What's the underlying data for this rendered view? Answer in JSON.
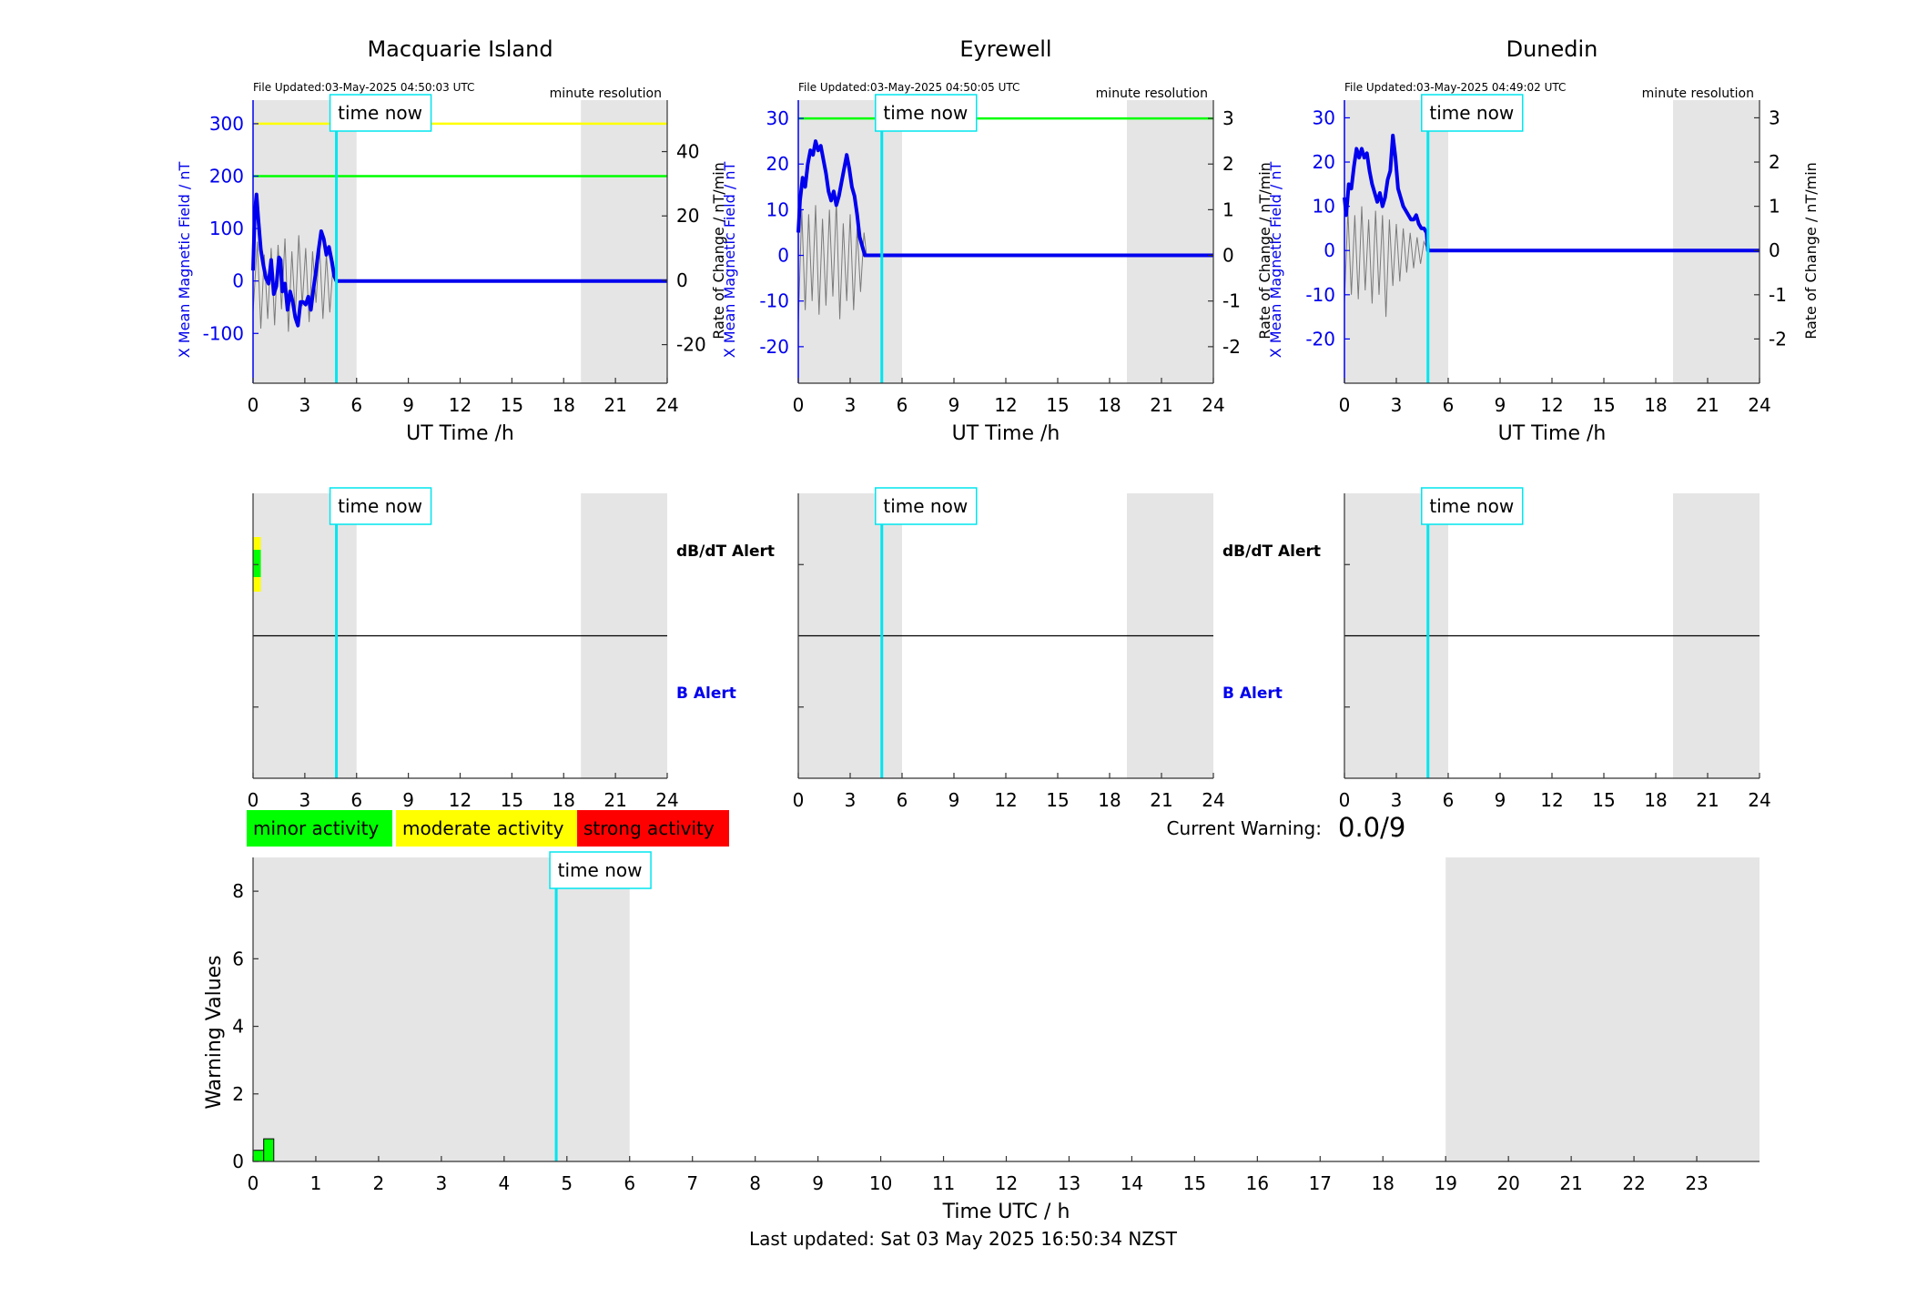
{
  "stations": [
    {
      "title": "Macquarie Island",
      "file_updated": "File Updated:03-May-2025 04:50:03 UTC",
      "resolution": "minute resolution",
      "time_now_label": "time now",
      "now_hour": 4.83,
      "shade_ranges": [
        [
          0,
          6
        ],
        [
          19,
          24
        ]
      ],
      "left_yticks": [
        -100,
        0,
        100,
        200,
        300
      ],
      "left_ylim": [
        -195,
        345
      ],
      "left_ylabel": "X Mean Magnetic Field / nT",
      "right_yticks": [
        -20,
        0,
        20,
        40
      ],
      "right_ylim": [
        -32,
        56
      ],
      "right_ylabel": "Rate of Change / nT/min",
      "alert_lines": [
        {
          "value": 300,
          "color": "#ffff00"
        },
        {
          "value": 200,
          "color": "#00ff00"
        }
      ],
      "field_series": [
        [
          0,
          20
        ],
        [
          0.1,
          130
        ],
        [
          0.2,
          165
        ],
        [
          0.3,
          120
        ],
        [
          0.45,
          60
        ],
        [
          0.6,
          30
        ],
        [
          0.75,
          5
        ],
        [
          0.9,
          -5
        ],
        [
          1.05,
          40
        ],
        [
          1.2,
          -25
        ],
        [
          1.35,
          -10
        ],
        [
          1.5,
          45
        ],
        [
          1.6,
          40
        ],
        [
          1.7,
          -20
        ],
        [
          1.85,
          -5
        ],
        [
          2.0,
          -55
        ],
        [
          2.15,
          -20
        ],
        [
          2.3,
          -40
        ],
        [
          2.45,
          -70
        ],
        [
          2.6,
          -85
        ],
        [
          2.75,
          -40
        ],
        [
          2.9,
          -40
        ],
        [
          3.05,
          -45
        ],
        [
          3.2,
          -30
        ],
        [
          3.35,
          -55
        ],
        [
          3.5,
          -15
        ],
        [
          3.65,
          20
        ],
        [
          3.8,
          60
        ],
        [
          3.95,
          95
        ],
        [
          4.1,
          80
        ],
        [
          4.25,
          50
        ],
        [
          4.4,
          65
        ],
        [
          4.55,
          40
        ],
        [
          4.7,
          10
        ],
        [
          4.83,
          0
        ],
        [
          24,
          0
        ]
      ],
      "roc_series": [
        [
          0,
          -10
        ],
        [
          0.25,
          12
        ],
        [
          0.45,
          -15
        ],
        [
          0.65,
          8
        ],
        [
          0.85,
          -12
        ],
        [
          1.05,
          10
        ],
        [
          1.25,
          -14
        ],
        [
          1.45,
          11
        ],
        [
          1.65,
          -9
        ],
        [
          1.85,
          13
        ],
        [
          2.05,
          -16
        ],
        [
          2.25,
          9
        ],
        [
          2.45,
          -11
        ],
        [
          2.65,
          14
        ],
        [
          2.85,
          -8
        ],
        [
          3.05,
          10
        ],
        [
          3.25,
          -13
        ],
        [
          3.45,
          9
        ],
        [
          3.65,
          -7
        ],
        [
          3.85,
          11
        ],
        [
          4.05,
          -12
        ],
        [
          4.25,
          8
        ],
        [
          4.45,
          -10
        ],
        [
          4.65,
          6
        ],
        [
          4.83,
          0
        ]
      ],
      "alert_panel": {
        "dbdt_label": "dB/dT Alert",
        "b_label": "B Alert",
        "dbdt_blocks": [
          {
            "start": 0,
            "end": 0.45,
            "color": "#00ff00",
            "edge": "#ffff00"
          }
        ]
      }
    },
    {
      "title": "Eyrewell",
      "file_updated": "File Updated:03-May-2025 04:50:05 UTC",
      "resolution": "minute resolution",
      "time_now_label": "time now",
      "now_hour": 4.83,
      "shade_ranges": [
        [
          0,
          6
        ],
        [
          19,
          24
        ]
      ],
      "left_yticks": [
        -20,
        -10,
        0,
        10,
        20,
        30
      ],
      "left_ylim": [
        -28,
        34
      ],
      "left_ylabel": "X Mean Magnetic Field / nT",
      "right_yticks": [
        -2,
        -1,
        0,
        1,
        2,
        3
      ],
      "right_ylim": [
        -2.8,
        3.4
      ],
      "right_ylabel": "Rate of Change / nT/min",
      "alert_lines": [
        {
          "value": 30,
          "color": "#00ff00"
        }
      ],
      "field_series": [
        [
          0,
          5
        ],
        [
          0.1,
          12
        ],
        [
          0.25,
          17
        ],
        [
          0.4,
          15
        ],
        [
          0.55,
          20
        ],
        [
          0.7,
          23
        ],
        [
          0.85,
          22
        ],
        [
          1.0,
          25
        ],
        [
          1.15,
          23
        ],
        [
          1.3,
          24
        ],
        [
          1.45,
          21
        ],
        [
          1.6,
          18
        ],
        [
          1.75,
          14
        ],
        [
          1.9,
          12
        ],
        [
          2.05,
          14
        ],
        [
          2.2,
          11
        ],
        [
          2.35,
          13
        ],
        [
          2.5,
          16
        ],
        [
          2.65,
          19
        ],
        [
          2.8,
          22
        ],
        [
          2.95,
          19
        ],
        [
          3.1,
          15
        ],
        [
          3.25,
          13
        ],
        [
          3.4,
          9
        ],
        [
          3.55,
          4
        ],
        [
          3.7,
          2
        ],
        [
          3.85,
          0
        ],
        [
          3.95,
          0
        ],
        [
          24,
          0
        ]
      ],
      "roc_series": [
        [
          0,
          -1.5
        ],
        [
          0.2,
          1.0
        ],
        [
          0.4,
          -1.2
        ],
        [
          0.6,
          0.9
        ],
        [
          0.8,
          -1.0
        ],
        [
          1.0,
          1.1
        ],
        [
          1.2,
          -1.3
        ],
        [
          1.4,
          0.8
        ],
        [
          1.6,
          -1.1
        ],
        [
          1.8,
          1.0
        ],
        [
          2.0,
          -0.9
        ],
        [
          2.2,
          1.2
        ],
        [
          2.4,
          -1.4
        ],
        [
          2.6,
          0.7
        ],
        [
          2.8,
          -1.0
        ],
        [
          3.0,
          0.9
        ],
        [
          3.2,
          -1.2
        ],
        [
          3.4,
          0.6
        ],
        [
          3.6,
          -0.8
        ],
        [
          3.8,
          0.5
        ],
        [
          3.95,
          0
        ]
      ],
      "alert_panel": {
        "dbdt_label": "dB/dT Alert",
        "b_label": "B Alert",
        "dbdt_blocks": []
      }
    },
    {
      "title": "Dunedin",
      "file_updated": "File Updated:03-May-2025 04:49:02 UTC",
      "resolution": "minute resolution",
      "time_now_label": "time now",
      "now_hour": 4.83,
      "shade_ranges": [
        [
          0,
          6
        ],
        [
          19,
          24
        ]
      ],
      "left_yticks": [
        -20,
        -10,
        0,
        10,
        20,
        30
      ],
      "left_ylim": [
        -30,
        34
      ],
      "left_ylabel": "X Mean Magnetic Field / nT",
      "right_yticks": [
        -2,
        -1,
        0,
        1,
        2,
        3
      ],
      "right_ylim": [
        -3.0,
        3.4
      ],
      "right_ylabel": "Rate of Change / nT/min",
      "alert_lines": [],
      "field_series": [
        [
          0,
          12
        ],
        [
          0.1,
          8
        ],
        [
          0.25,
          15
        ],
        [
          0.4,
          14
        ],
        [
          0.55,
          19
        ],
        [
          0.7,
          23
        ],
        [
          0.85,
          21
        ],
        [
          1.0,
          23
        ],
        [
          1.15,
          21
        ],
        [
          1.3,
          22
        ],
        [
          1.45,
          18
        ],
        [
          1.6,
          15
        ],
        [
          1.75,
          13
        ],
        [
          1.9,
          11
        ],
        [
          2.05,
          13
        ],
        [
          2.2,
          10
        ],
        [
          2.35,
          12
        ],
        [
          2.5,
          16
        ],
        [
          2.65,
          18
        ],
        [
          2.8,
          26
        ],
        [
          2.95,
          21
        ],
        [
          3.1,
          14
        ],
        [
          3.25,
          12
        ],
        [
          3.4,
          10
        ],
        [
          3.55,
          9
        ],
        [
          3.7,
          8
        ],
        [
          3.85,
          7
        ],
        [
          4.0,
          7
        ],
        [
          4.15,
          8
        ],
        [
          4.3,
          6
        ],
        [
          4.45,
          5
        ],
        [
          4.6,
          5
        ],
        [
          4.75,
          4
        ],
        [
          4.83,
          0
        ],
        [
          24,
          0
        ]
      ],
      "roc_series": [
        [
          0,
          -1.2
        ],
        [
          0.2,
          0.9
        ],
        [
          0.4,
          -1.0
        ],
        [
          0.6,
          0.8
        ],
        [
          0.8,
          -1.1
        ],
        [
          1.0,
          1.0
        ],
        [
          1.2,
          -0.9
        ],
        [
          1.4,
          0.7
        ],
        [
          1.6,
          -1.2
        ],
        [
          1.8,
          0.9
        ],
        [
          2.0,
          -1.0
        ],
        [
          2.2,
          0.8
        ],
        [
          2.4,
          -1.5
        ],
        [
          2.6,
          0.7
        ],
        [
          2.8,
          -0.8
        ],
        [
          3.0,
          0.6
        ],
        [
          3.2,
          -0.7
        ],
        [
          3.4,
          0.5
        ],
        [
          3.6,
          -0.5
        ],
        [
          3.8,
          0.4
        ],
        [
          4.0,
          -0.4
        ],
        [
          4.2,
          0.3
        ],
        [
          4.4,
          -0.3
        ],
        [
          4.6,
          0.2
        ],
        [
          4.83,
          0
        ]
      ],
      "alert_panel": {
        "dbdt_label": "dB/dT Alert",
        "b_label": "B Alert",
        "dbdt_blocks": []
      }
    }
  ],
  "x_axis": {
    "label": "UT Time /h",
    "ticks": [
      0,
      3,
      6,
      9,
      12,
      15,
      18,
      21,
      24
    ],
    "xlim": [
      0,
      24
    ]
  },
  "legend": [
    {
      "label": "minor activity",
      "color": "#00ff00"
    },
    {
      "label": "moderate activity",
      "color": "#ffff00"
    },
    {
      "label": "strong activity",
      "color": "#ff0000"
    }
  ],
  "current_warning": {
    "label": "Current Warning:",
    "value": "0.0/9"
  },
  "warning_chart": {
    "ylabel": "Warning Values",
    "xlabel": "Time UTC / h",
    "yticks": [
      0,
      2,
      4,
      6,
      8
    ],
    "ylim": [
      0,
      9
    ],
    "xlim": [
      0,
      24
    ],
    "xticks": [
      0,
      1,
      2,
      3,
      4,
      5,
      6,
      7,
      8,
      9,
      10,
      11,
      12,
      13,
      14,
      15,
      16,
      17,
      18,
      19,
      20,
      21,
      22,
      23
    ],
    "shade_ranges": [
      [
        0,
        6
      ],
      [
        19,
        24
      ]
    ],
    "now_hour": 4.83,
    "time_now_label": "time now",
    "bars": [
      {
        "start": 0,
        "end": 0.17,
        "value": 0.33,
        "color": "#00ff00"
      },
      {
        "start": 0.17,
        "end": 0.33,
        "value": 0.67,
        "color": "#00ff00"
      }
    ]
  },
  "footer": "Last updated: Sat 03 May 2025 16:50:34 NZST",
  "chart_data": [
    {
      "type": "line",
      "title": "Macquarie Island",
      "xlabel": "UT Time /h",
      "ylabel": "X Mean Magnetic Field / nT",
      "y2label": "Rate of Change / nT/min",
      "xlim": [
        0,
        24
      ]
    },
    {
      "type": "line",
      "title": "Eyrewell",
      "xlabel": "UT Time /h",
      "ylabel": "X Mean Magnetic Field / nT",
      "y2label": "Rate of Change / nT/min",
      "xlim": [
        0,
        24
      ]
    },
    {
      "type": "line",
      "title": "Dunedin",
      "xlabel": "UT Time /h",
      "ylabel": "X Mean Magnetic Field / nT",
      "y2label": "Rate of Change / nT/min",
      "xlim": [
        0,
        24
      ]
    },
    {
      "type": "bar",
      "xlabel": "Time UTC / h",
      "ylabel": "Warning Values",
      "ylim": [
        0,
        9
      ],
      "x": [
        0.08,
        0.25
      ],
      "values": [
        0.33,
        0.67
      ]
    }
  ]
}
